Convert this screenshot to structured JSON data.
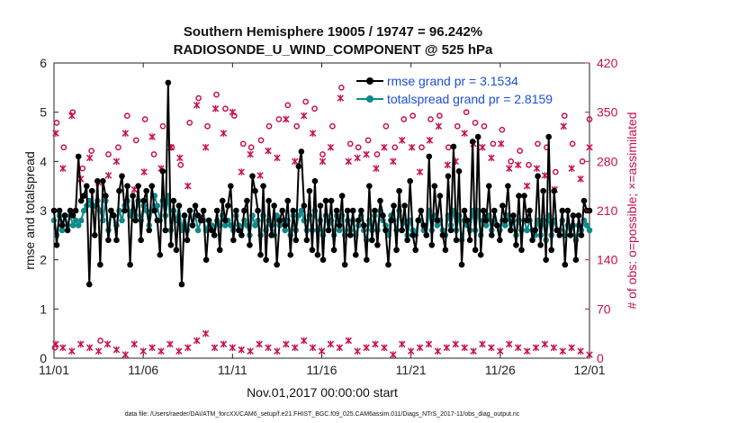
{
  "chart_data": {
    "type": "line",
    "title": "Southern Hemisphere 19005 / 19747 = 96.242%",
    "subtitle": "RADIOSONDE_U_WIND_COMPONENT @ 525 hPa",
    "xlabel": "Nov.01,2017 00:00:00 start",
    "ylabel": "rmse and totalspread",
    "ylabel_right": "# of obs: o=possible; ×=assimilated",
    "footnote": "data file: /Users/raeder/DAI/ATM_forcXX/CAM6_setup/f.e21.FHIST_BGC.f09_025.CAM6assim.011/Diags_NTrS_2017-11/obs_diag_output.nc",
    "x_ticks": [
      "11/01",
      "11/06",
      "11/11",
      "11/16",
      "11/21",
      "11/26",
      "12/01"
    ],
    "xlim": [
      0,
      30
    ],
    "ylim": [
      0,
      6
    ],
    "y_ticks": [
      "0",
      "1",
      "2",
      "3",
      "4",
      "5",
      "6"
    ],
    "ylim_right": [
      0,
      420
    ],
    "y_ticks_right": [
      "0",
      "70",
      "140",
      "210",
      "280",
      "350",
      "420"
    ],
    "colors": {
      "rmse": "#000000",
      "spread": "#0e8a8a",
      "obs": "#c8104e"
    },
    "series": [
      {
        "name": "rmse grand pr = 3.1534",
        "axis": "left",
        "values": [
          3.0,
          2.3,
          3.0,
          2.7,
          2.9,
          2.6,
          3.0,
          2.9,
          3.0,
          4.1,
          3.2,
          3.3,
          3.5,
          1.5,
          3.4,
          2.5,
          3.6,
          1.9,
          3.6,
          3.3,
          2.4,
          3.0,
          2.9,
          2.4,
          3.4,
          3.7,
          3.0,
          3.5,
          1.9,
          3.3,
          2.8,
          3.5,
          2.4,
          3.2,
          3.4,
          2.6,
          3.5,
          3.0,
          2.8,
          2.1,
          3.8,
          2.6,
          5.6,
          2.3,
          3.2,
          2.2,
          3.1,
          1.5,
          2.9,
          2.4,
          3.0,
          2.7,
          3.1,
          2.9,
          2.8,
          3.0,
          2.0,
          2.8,
          2.6,
          2.5,
          3.0,
          2.2,
          3.2,
          2.8,
          3.1,
          3.5,
          2.4,
          3.0,
          2.6,
          2.5,
          3.0,
          3.2,
          2.3,
          3.7,
          3.4,
          3.0,
          2.1,
          3.5,
          2.0,
          3.2,
          2.5,
          3.1,
          1.9,
          2.8,
          3.0,
          2.7,
          3.2,
          2.1,
          3.0,
          2.4,
          3.9,
          4.2,
          3.1,
          2.4,
          3.4,
          2.2,
          3.6,
          2.1,
          3.1,
          2.0,
          3.2,
          2.6,
          3.2,
          2.2,
          3.0,
          2.7,
          3.3,
          1.9,
          3.0,
          2.5,
          3.0,
          2.1,
          2.8,
          3.0,
          2.7,
          2.0,
          3.5,
          2.4,
          3.0,
          2.3,
          3.2,
          2.9,
          2.6,
          1.9,
          2.8,
          3.1,
          2.2,
          3.4,
          2.6,
          3.1,
          2.4,
          3.6,
          2.5,
          2.2,
          2.8,
          3.0,
          2.7,
          2.5,
          4.1,
          2.3,
          3.5,
          2.8,
          3.3,
          2.5,
          2.2,
          3.7,
          2.6,
          4.3,
          2.4,
          3.8,
          1.9,
          3.0,
          2.8,
          2.4,
          4.4,
          2.2,
          4.5,
          2.1,
          3.0,
          2.8,
          3.5,
          2.5,
          3.0,
          2.7,
          2.4,
          3.1,
          2.8,
          3.5,
          2.6,
          2.9,
          2.3,
          3.3,
          2.2,
          3.3,
          2.8,
          3.0,
          2.4,
          2.6,
          3.7,
          2.3,
          3.4,
          2.0,
          4.5,
          2.2,
          3.4,
          2.6,
          2.5,
          3.0,
          1.9,
          3.0,
          2.5,
          2.9,
          2.0,
          2.9,
          2.5,
          3.2,
          3.0,
          3.0
        ],
        "marker": "filled circle"
      },
      {
        "name": "totalspread grand pr = 2.8159",
        "axis": "left",
        "values": [
          2.8,
          2.5,
          2.9,
          2.6,
          2.9,
          2.7,
          2.9,
          2.7,
          2.8,
          2.7,
          2.8,
          3.0,
          3.1,
          3.2,
          3.1,
          3.1,
          3.2,
          3.0,
          2.8,
          3.2,
          2.6,
          3.0,
          2.9,
          2.7,
          3.0,
          2.8,
          3.1,
          3.2,
          2.9,
          3.0,
          2.9,
          3.2,
          2.8,
          3.1,
          3.0,
          2.7,
          3.0,
          3.3,
          3.1,
          2.8,
          3.2,
          2.9,
          3.3,
          2.6,
          3.0,
          2.8,
          3.1,
          2.6,
          2.9,
          2.6,
          3.0,
          2.7,
          2.9,
          2.6,
          2.8,
          2.8,
          2.6,
          2.8,
          2.7,
          2.5,
          2.8,
          2.7,
          2.9,
          2.7,
          2.8,
          2.7,
          2.6,
          2.9,
          2.7,
          2.5,
          2.8,
          2.7,
          2.5,
          2.9,
          2.7,
          2.8,
          2.5,
          2.9,
          2.6,
          2.8,
          2.7,
          2.5,
          2.9,
          2.7,
          2.8,
          2.6,
          2.8,
          2.5,
          2.9,
          2.6,
          2.9,
          3.0,
          2.8,
          2.6,
          2.9,
          2.6,
          3.0,
          2.6,
          2.8,
          2.5,
          2.9,
          2.6,
          2.8,
          2.5,
          2.9,
          2.6,
          2.9,
          2.5,
          2.8,
          2.6,
          2.8,
          2.5,
          2.7,
          2.9,
          2.6,
          2.4,
          2.8,
          2.6,
          2.9,
          2.6,
          3.0,
          2.8,
          2.7,
          2.5,
          2.9,
          2.8,
          2.6,
          3.0,
          2.6,
          2.8,
          2.5,
          2.8,
          2.6,
          2.5,
          2.8,
          2.8,
          2.6,
          2.5,
          3.0,
          2.6,
          2.9,
          2.7,
          2.8,
          2.6,
          2.5,
          2.9,
          2.7,
          3.0,
          2.6,
          2.9,
          2.4,
          2.8,
          2.7,
          2.6,
          3.0,
          2.6,
          3.0,
          2.5,
          2.8,
          2.7,
          2.9,
          2.6,
          2.8,
          2.7,
          2.6,
          2.8,
          2.7,
          2.9,
          2.6,
          2.8,
          2.5,
          2.8,
          2.6,
          2.8,
          2.6,
          2.8,
          2.6,
          2.5,
          2.8,
          2.5,
          2.8,
          2.4,
          2.9,
          2.5,
          2.8,
          2.6,
          2.6,
          2.8,
          2.5,
          2.7,
          2.5,
          2.7,
          2.4,
          2.7,
          2.6,
          2.8,
          2.7,
          2.6
        ],
        "marker": "filled circle"
      },
      {
        "name": "obs possible",
        "axis": "right",
        "marker": "o",
        "points": [
          [
            0.05,
            15
          ],
          [
            0.15,
            335
          ],
          [
            0.55,
            300
          ],
          [
            1.05,
            350
          ],
          [
            1.6,
            270
          ],
          [
            2.1,
            295
          ],
          [
            2.6,
            25
          ],
          [
            3.05,
            290
          ],
          [
            3.6,
            300
          ],
          [
            4.1,
            345
          ],
          [
            4.6,
            310
          ],
          [
            5.1,
            340
          ],
          [
            5.6,
            290
          ],
          [
            6.1,
            330
          ],
          [
            6.6,
            300
          ],
          [
            7.1,
            275
          ],
          [
            7.6,
            335
          ],
          [
            8.1,
            370
          ],
          [
            8.6,
            330
          ],
          [
            9.1,
            375
          ],
          [
            9.6,
            355
          ],
          [
            10.1,
            345
          ],
          [
            10.6,
            305
          ],
          [
            11.05,
            300
          ],
          [
            11.6,
            310
          ],
          [
            12.05,
            330
          ],
          [
            12.6,
            340
          ],
          [
            13.1,
            360
          ],
          [
            13.6,
            330
          ],
          [
            14.1,
            365
          ],
          [
            14.6,
            355
          ],
          [
            15.05,
            290
          ],
          [
            15.6,
            330
          ],
          [
            16.1,
            385
          ],
          [
            16.6,
            305
          ],
          [
            17.05,
            300
          ],
          [
            17.6,
            310
          ],
          [
            18.1,
            290
          ],
          [
            18.6,
            330
          ],
          [
            19.1,
            300
          ],
          [
            19.6,
            340
          ],
          [
            20.1,
            345
          ],
          [
            20.6,
            300
          ],
          [
            21.1,
            340
          ],
          [
            21.6,
            345
          ],
          [
            22.1,
            300
          ],
          [
            22.6,
            330
          ],
          [
            23.1,
            350
          ],
          [
            23.6,
            335
          ],
          [
            24.1,
            330
          ],
          [
            24.6,
            305
          ],
          [
            25.1,
            325
          ],
          [
            25.6,
            280
          ],
          [
            26.1,
            295
          ],
          [
            26.6,
            275
          ],
          [
            27.1,
            305
          ],
          [
            27.6,
            300
          ],
          [
            28.1,
            265
          ],
          [
            28.6,
            345
          ],
          [
            29.05,
            305
          ],
          [
            29.6,
            280
          ],
          [
            30.0,
            340
          ]
        ]
      },
      {
        "name": "obs assimilated",
        "axis": "right",
        "marker": "x",
        "points": [
          [
            0.1,
            320
          ],
          [
            0.5,
            270
          ],
          [
            1.0,
            345
          ],
          [
            1.5,
            255
          ],
          [
            2.0,
            285
          ],
          [
            2.5,
            250
          ],
          [
            3.05,
            260
          ],
          [
            3.5,
            280
          ],
          [
            4.0,
            320
          ],
          [
            4.5,
            240
          ],
          [
            5.05,
            265
          ],
          [
            5.5,
            315
          ],
          [
            6.0,
            270
          ],
          [
            6.55,
            300
          ],
          [
            7.05,
            285
          ],
          [
            7.5,
            245
          ],
          [
            8.0,
            360
          ],
          [
            8.5,
            300
          ],
          [
            9.05,
            355
          ],
          [
            9.5,
            320
          ],
          [
            10.0,
            350
          ],
          [
            10.5,
            265
          ],
          [
            11.0,
            290
          ],
          [
            11.55,
            260
          ],
          [
            12.0,
            295
          ],
          [
            12.5,
            285
          ],
          [
            13.0,
            340
          ],
          [
            13.5,
            280
          ],
          [
            14.0,
            345
          ],
          [
            14.5,
            320
          ],
          [
            15.05,
            280
          ],
          [
            15.5,
            300
          ],
          [
            16.05,
            370
          ],
          [
            16.5,
            280
          ],
          [
            17.0,
            285
          ],
          [
            17.5,
            290
          ],
          [
            18.05,
            270
          ],
          [
            18.5,
            300
          ],
          [
            19.0,
            280
          ],
          [
            19.5,
            310
          ],
          [
            20.05,
            300
          ],
          [
            20.5,
            265
          ],
          [
            21.05,
            310
          ],
          [
            21.55,
            330
          ],
          [
            22.05,
            275
          ],
          [
            22.5,
            280
          ],
          [
            23.0,
            320
          ],
          [
            23.5,
            305
          ],
          [
            24.0,
            300
          ],
          [
            24.5,
            285
          ],
          [
            25.05,
            305
          ],
          [
            25.5,
            270
          ],
          [
            26.0,
            275
          ],
          [
            26.5,
            245
          ],
          [
            27.05,
            270
          ],
          [
            27.5,
            260
          ],
          [
            28.05,
            240
          ],
          [
            28.55,
            330
          ],
          [
            29.0,
            270
          ],
          [
            29.5,
            255
          ],
          [
            30.0,
            300
          ],
          [
            0.1,
            20
          ],
          [
            0.5,
            15
          ],
          [
            1.0,
            10
          ],
          [
            1.5,
            20
          ],
          [
            2.0,
            15
          ],
          [
            2.5,
            10
          ],
          [
            3.0,
            20
          ],
          [
            3.5,
            12
          ],
          [
            4.0,
            5
          ],
          [
            4.5,
            20
          ],
          [
            5.0,
            10
          ],
          [
            5.5,
            15
          ],
          [
            6.0,
            10
          ],
          [
            6.5,
            20
          ],
          [
            7.0,
            10
          ],
          [
            7.5,
            15
          ],
          [
            8.0,
            25
          ],
          [
            8.5,
            35
          ],
          [
            9.0,
            15
          ],
          [
            9.5,
            20
          ],
          [
            10.0,
            15
          ],
          [
            10.5,
            12
          ],
          [
            11.0,
            10
          ],
          [
            11.5,
            20
          ],
          [
            12.0,
            15
          ],
          [
            12.5,
            10
          ],
          [
            13.0,
            20
          ],
          [
            13.5,
            15
          ],
          [
            14.0,
            25
          ],
          [
            14.5,
            15
          ],
          [
            15.0,
            10
          ],
          [
            15.5,
            20
          ],
          [
            16.0,
            15
          ],
          [
            16.5,
            25
          ],
          [
            17.0,
            10
          ],
          [
            17.5,
            15
          ],
          [
            18.0,
            20
          ],
          [
            18.5,
            15
          ],
          [
            19.0,
            5
          ],
          [
            19.5,
            20
          ],
          [
            20.0,
            10
          ],
          [
            20.5,
            15
          ],
          [
            21.0,
            20
          ],
          [
            21.5,
            10
          ],
          [
            22.0,
            15
          ],
          [
            22.5,
            20
          ],
          [
            23.0,
            15
          ],
          [
            23.5,
            10
          ],
          [
            24.0,
            20
          ],
          [
            24.5,
            15
          ],
          [
            25.0,
            10
          ],
          [
            25.5,
            20
          ],
          [
            26.0,
            15
          ],
          [
            26.5,
            10
          ],
          [
            27.0,
            15
          ],
          [
            27.5,
            20
          ],
          [
            28.0,
            15
          ],
          [
            28.5,
            10
          ],
          [
            29.0,
            15
          ],
          [
            29.5,
            10
          ],
          [
            30.0,
            5
          ]
        ]
      }
    ],
    "legend_position": "top-right"
  }
}
